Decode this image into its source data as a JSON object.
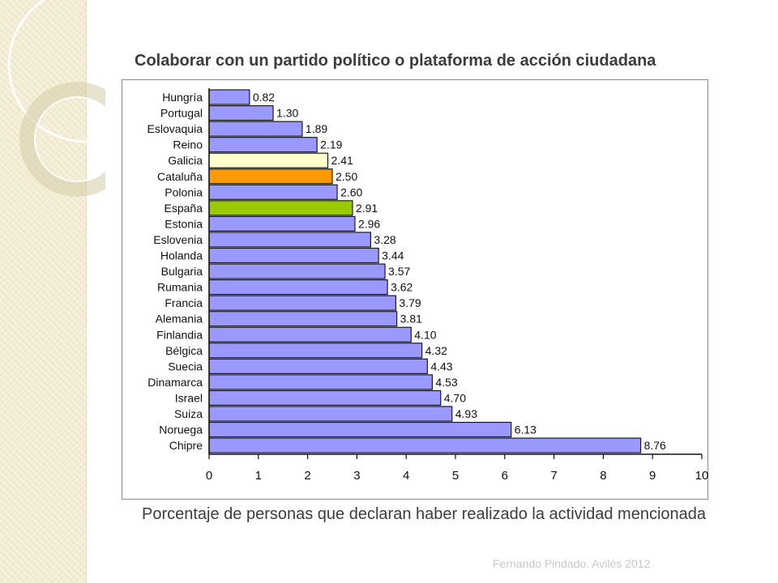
{
  "title": "Colaborar con un partido político o plataforma de acción ciudadana",
  "caption": "Porcentaje de personas que declaran haber realizado la actividad mencionada",
  "footer": "Fernando Pindado. Avilés 2012",
  "colors": {
    "default_bar": "#9999ff",
    "galicia": "#ffffcc",
    "cataluna": "#ff9900",
    "espana": "#99cc00",
    "bar_stroke": "#1a1a1a"
  },
  "chart_data": {
    "type": "bar",
    "orientation": "horizontal",
    "title": "Colaborar con un partido político o plataforma de acción ciudadana",
    "xlabel": "Porcentaje de personas que declaran haber realizado la actividad mencionada",
    "ylabel": "",
    "xlim": [
      0,
      10
    ],
    "xticks": [
      0,
      1,
      2,
      3,
      4,
      5,
      6,
      7,
      8,
      9,
      10
    ],
    "grid": false,
    "categories": [
      "Hungría",
      "Portugal",
      "Eslovaquia",
      "Reino",
      "Galicia",
      "Cataluña",
      "Polonia",
      "España",
      "Estonia",
      "Eslovenia",
      "Holanda",
      "Bulgaria",
      "Rumania",
      "Francia",
      "Alemania",
      "Finlandia",
      "Bélgica",
      "Suecia",
      "Dinamarca",
      "Israel",
      "Suiza",
      "Noruega",
      "Chipre"
    ],
    "values": [
      0.82,
      1.3,
      1.89,
      2.19,
      2.41,
      2.5,
      2.6,
      2.91,
      2.96,
      3.28,
      3.44,
      3.57,
      3.62,
      3.79,
      3.81,
      4.1,
      4.32,
      4.43,
      4.53,
      4.7,
      4.93,
      6.13,
      8.76
    ],
    "value_labels": [
      "0.82",
      "1.30",
      "1.89",
      "2.19",
      "2.41",
      "2.50",
      "2.60",
      "2.91",
      "2.96",
      "3.28",
      "3.44",
      "3.57",
      "3.62",
      "3.79",
      "3.81",
      "4.10",
      "4.32",
      "4.43",
      "4.53",
      "4.70",
      "4.93",
      "6.13",
      "8.76"
    ],
    "highlight": {
      "Galicia": "#ffffcc",
      "Cataluña": "#ff9900",
      "España": "#99cc00"
    }
  }
}
